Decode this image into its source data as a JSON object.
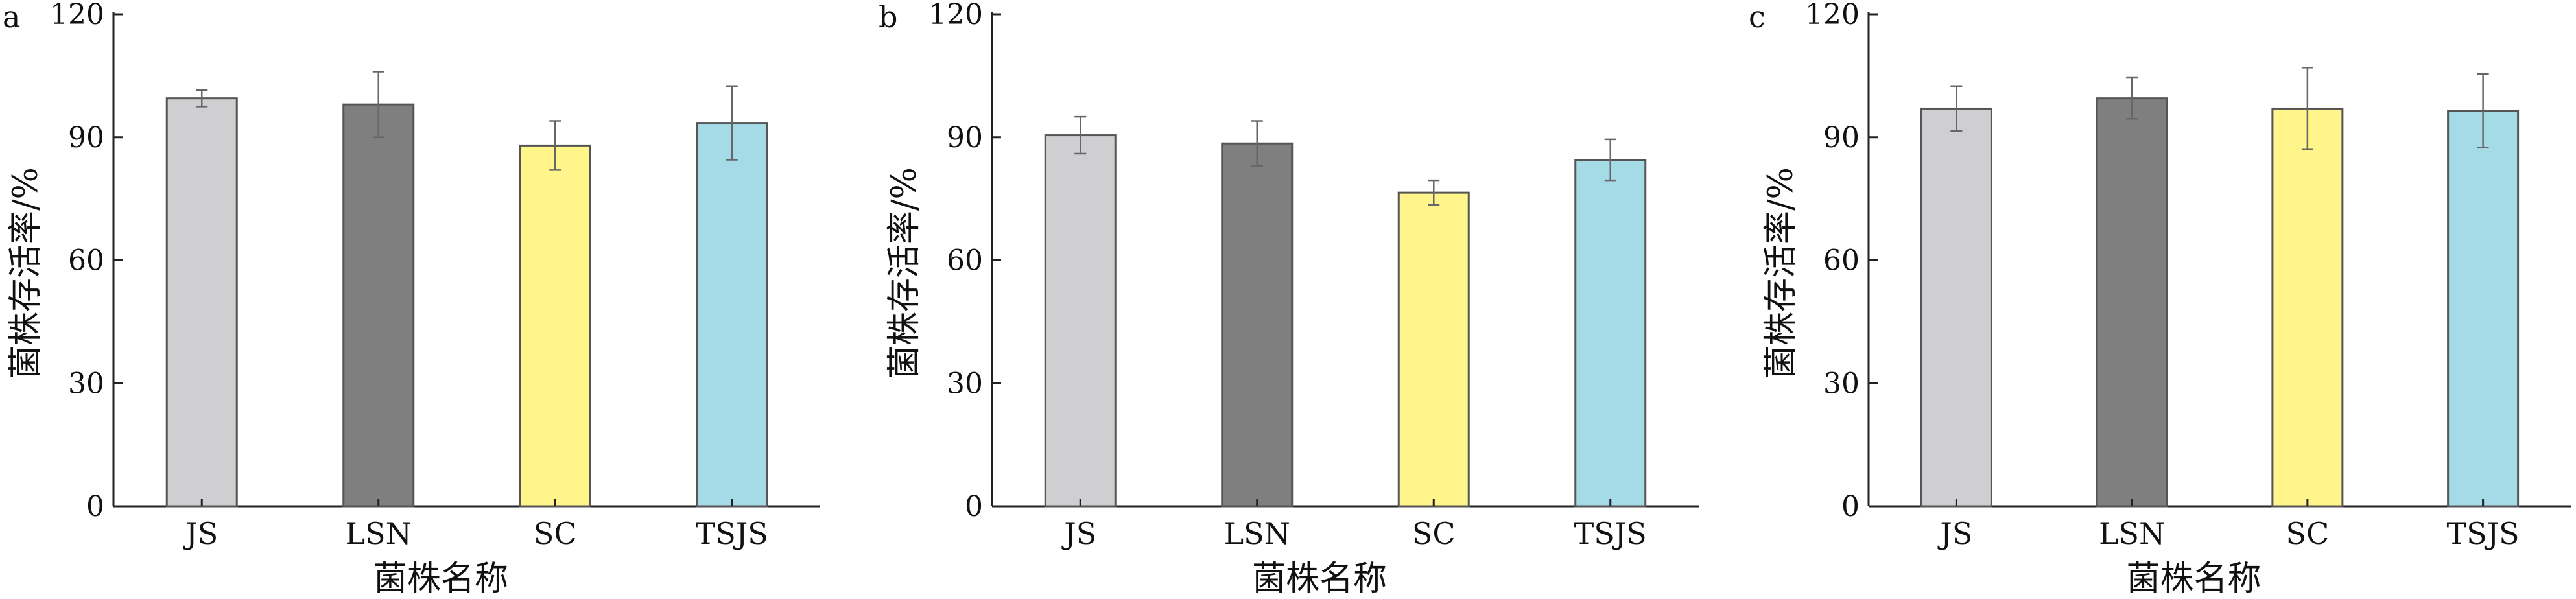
{
  "figure": {
    "panels": [
      {
        "panel_label": "a",
        "chart_data": {
          "type": "bar",
          "categories": [
            "JS",
            "LSN",
            "SC",
            "TSJS"
          ],
          "values": [
            99.5,
            98.0,
            88.0,
            93.5
          ],
          "errors": [
            2.0,
            8.0,
            6.0,
            9.0
          ],
          "colors": [
            "#cfcfd1",
            "#7f7f80",
            "#fff58a",
            "#a4dbe6"
          ],
          "xlabel": "菌株名称",
          "ylabel": "菌株存活率/%",
          "ylim": [
            0,
            120
          ],
          "yticks": [
            0,
            30,
            60,
            90,
            120
          ],
          "grid": false
        }
      },
      {
        "panel_label": "b",
        "chart_data": {
          "type": "bar",
          "categories": [
            "JS",
            "LSN",
            "SC",
            "TSJS"
          ],
          "values": [
            90.5,
            88.5,
            76.5,
            84.5
          ],
          "errors": [
            4.5,
            5.5,
            3.0,
            5.0
          ],
          "colors": [
            "#cfcfd1",
            "#7f7f80",
            "#fff58a",
            "#a4dbe6"
          ],
          "xlabel": "菌株名称",
          "ylabel": "菌株存活率/%",
          "ylim": [
            0,
            120
          ],
          "yticks": [
            0,
            30,
            60,
            90,
            120
          ],
          "grid": false
        }
      },
      {
        "panel_label": "c",
        "chart_data": {
          "type": "bar",
          "categories": [
            "JS",
            "LSN",
            "SC",
            "TSJS"
          ],
          "values": [
            97.0,
            99.5,
            97.0,
            96.5
          ],
          "errors": [
            5.5,
            5.0,
            10.0,
            9.0
          ],
          "colors": [
            "#cfcfd1",
            "#7f7f80",
            "#fff58a",
            "#a4dbe6"
          ],
          "xlabel": "菌株名称",
          "ylabel": "菌株存活率/%",
          "ylim": [
            0,
            120
          ],
          "yticks": [
            0,
            30,
            60,
            90,
            120
          ],
          "grid": false
        }
      }
    ]
  }
}
